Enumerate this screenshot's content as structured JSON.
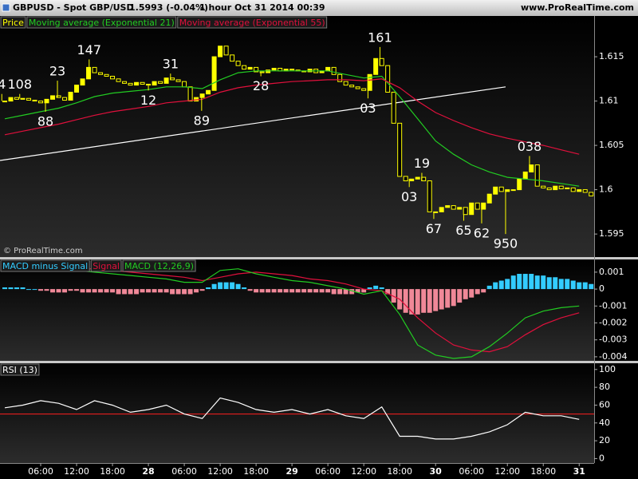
{
  "header": {
    "symbol": "GBPUSD - Spot GBP/USD",
    "quote": "1.5993 (-0.04%)",
    "interval": "1 hour",
    "datetime": "Oct 31 2014 00:39",
    "site": "www.ProRealTime.com"
  },
  "xlim": [
    -0.8,
    98.5
  ],
  "xticks": [
    {
      "value": 6,
      "label": "06:00"
    },
    {
      "value": 12,
      "label": "12:00"
    },
    {
      "value": 18,
      "label": "18:00"
    },
    {
      "value": 24,
      "label": "28"
    },
    {
      "value": 30,
      "label": "06:00"
    },
    {
      "value": 36,
      "label": "12:00"
    },
    {
      "value": 42,
      "label": "18:00"
    },
    {
      "value": 48,
      "label": "29"
    },
    {
      "value": 54,
      "label": "06:00"
    },
    {
      "value": 60,
      "label": "12:00"
    },
    {
      "value": 66,
      "label": "18:00"
    },
    {
      "value": 72,
      "label": "30"
    },
    {
      "value": 78,
      "label": "06:00"
    },
    {
      "value": 84,
      "label": "12:00"
    },
    {
      "value": 90,
      "label": "18:00"
    },
    {
      "value": 96,
      "label": "31"
    }
  ],
  "x_hours": [
    0,
    1,
    2,
    3,
    4,
    5,
    6,
    7,
    8,
    9,
    10,
    11,
    12,
    13,
    14,
    15,
    16,
    17,
    18,
    19,
    20,
    21,
    22,
    23,
    24,
    25,
    26,
    27,
    28,
    29,
    30,
    31,
    32,
    33,
    34,
    35,
    36,
    37,
    38,
    39,
    40,
    41,
    42,
    43,
    44,
    45,
    46,
    47,
    48,
    49,
    50,
    51,
    52,
    53,
    54,
    55,
    56,
    57,
    58,
    59,
    60,
    61,
    62,
    63,
    64,
    65,
    66,
    67,
    68,
    69,
    70,
    71,
    72,
    73,
    74,
    75,
    76,
    77,
    78,
    79,
    80,
    81,
    82,
    83,
    84,
    85,
    86,
    87,
    88,
    89,
    90,
    91,
    92,
    93,
    94,
    95,
    96,
    97,
    98
  ],
  "x_3h": [
    0,
    3,
    6,
    9,
    12,
    15,
    18,
    21,
    24,
    27,
    30,
    33,
    36,
    39,
    42,
    45,
    48,
    51,
    54,
    57,
    60,
    63,
    66,
    69,
    72,
    75,
    78,
    81,
    84,
    87,
    90,
    93,
    96
  ],
  "chart_data": [
    {
      "type": "candlestick",
      "watermark": "© ProRealTime.com",
      "ylim": [
        1.5924,
        1.6196
      ],
      "yticks": [
        1.595,
        1.6,
        1.605,
        1.61,
        1.615
      ],
      "series": [
        {
          "name": "Price",
          "type": "candlestick",
          "color": "#ffff00",
          "values": [
            1.61,
            1.6104,
            1.6102,
            1.6103,
            1.6101,
            1.61,
            1.6098,
            1.6102,
            1.6106,
            1.6104,
            1.6101,
            1.611,
            1.6118,
            1.6125,
            1.6138,
            1.6132,
            1.613,
            1.6128,
            1.6125,
            1.6122,
            1.612,
            1.6118,
            1.6121,
            1.6119,
            1.6118,
            1.6122,
            1.612,
            1.6126,
            1.6124,
            1.6122,
            1.6116,
            1.61,
            1.6104,
            1.6108,
            1.6112,
            1.615,
            1.6162,
            1.6152,
            1.6145,
            1.614,
            1.6136,
            1.6138,
            1.6133,
            1.6132,
            1.6135,
            1.6137,
            1.6134,
            1.6136,
            1.6135,
            1.6134,
            1.6133,
            1.6136,
            1.6132,
            1.6134,
            1.6138,
            1.613,
            1.6122,
            1.6118,
            1.6116,
            1.6114,
            1.6112,
            1.613,
            1.6148,
            1.614,
            1.611,
            1.6075,
            1.6015,
            1.601,
            1.6012,
            1.6014,
            1.601,
            1.5975,
            1.5975,
            1.598,
            1.5982,
            1.5978,
            1.598,
            1.5972,
            1.5985,
            1.5978,
            1.5985,
            1.5995,
            1.6003,
            1.5998,
            1.6,
            1.6,
            1.6012,
            1.602,
            1.6028,
            1.6004,
            1.6002,
            1.6,
            1.6004,
            1.6001,
            1.6002,
            1.5998,
            1.6,
            1.5997,
            1.5993
          ]
        },
        {
          "name": "Moving average (Exponential 21)",
          "type": "line",
          "color": "#22cc22",
          "values": [
            1.608,
            1.6084,
            1.6088,
            1.6092,
            1.6098,
            1.6105,
            1.6109,
            1.6111,
            1.6113,
            1.6116,
            1.6116,
            1.6114,
            1.6124,
            1.6132,
            1.6134,
            1.6134,
            1.6134,
            1.6134,
            1.6134,
            1.613,
            1.6126,
            1.6128,
            1.6105,
            1.608,
            1.6055,
            1.604,
            1.6028,
            1.602,
            1.6014,
            1.6012,
            1.601,
            1.6007,
            1.6004
          ]
        },
        {
          "name": "Moving average (Exponential 55)",
          "type": "line",
          "color": "#e0103c",
          "values": [
            1.6062,
            1.6066,
            1.607,
            1.6074,
            1.6079,
            1.6084,
            1.6088,
            1.6091,
            1.6094,
            1.6098,
            1.61,
            1.6102,
            1.611,
            1.6115,
            1.6118,
            1.612,
            1.6122,
            1.6123,
            1.6124,
            1.6124,
            1.6123,
            1.6125,
            1.6115,
            1.61,
            1.6087,
            1.6078,
            1.607,
            1.6063,
            1.6058,
            1.6054,
            1.605,
            1.6045,
            1.604
          ]
        }
      ],
      "trendline": {
        "x": [
          -0.8,
          83.7
        ],
        "y": [
          1.6033,
          1.6116
        ],
        "color": "#ffffff"
      },
      "annotations": [
        {
          "label": "4",
          "x": -0.5,
          "y": 1.6108
        },
        {
          "label": "108",
          "x": 2.5,
          "y": 1.6108
        },
        {
          "label": "23",
          "x": 8.8,
          "y": 1.6123
        },
        {
          "label": "88",
          "x": 6.8,
          "y": 1.6088
        },
        {
          "label": "147",
          "x": 14.1,
          "y": 1.6147
        },
        {
          "label": "12",
          "x": 24,
          "y": 1.6112
        },
        {
          "label": "31",
          "x": 27.7,
          "y": 1.6131
        },
        {
          "label": "89",
          "x": 32.9,
          "y": 1.6089
        },
        {
          "label": "28",
          "x": 42.8,
          "y": 1.6128
        },
        {
          "label": "161",
          "x": 62.7,
          "y": 1.6161
        },
        {
          "label": "03",
          "x": 60.7,
          "y": 1.6103
        },
        {
          "label": "03",
          "x": 67.6,
          "y": 1.6003
        },
        {
          "label": "19",
          "x": 69.7,
          "y": 1.6019
        },
        {
          "label": "67",
          "x": 71.7,
          "y": 1.5967
        },
        {
          "label": "65",
          "x": 76.7,
          "y": 1.5965
        },
        {
          "label": "62",
          "x": 79.7,
          "y": 1.5962
        },
        {
          "label": "950",
          "x": 83.7,
          "y": 1.595
        },
        {
          "label": "038",
          "x": 87.7,
          "y": 1.6038
        }
      ]
    },
    {
      "type": "macd",
      "ylim": [
        -0.00424,
        0.00175
      ],
      "yticks": [
        -0.004,
        -0.003,
        -0.002,
        -0.001,
        0,
        0.001
      ],
      "series": [
        {
          "name": "MACD minus Signal",
          "type": "histogram",
          "color": "#33ccff",
          "negative_color": "#f08898",
          "values": [
            0.0001,
            0.0001,
            0.0001,
            0.0001,
            0.0,
            0.0,
            -0.0001,
            -0.0001,
            -0.0002,
            -0.0002,
            -0.0002,
            -0.0001,
            -0.0001,
            -0.0002,
            -0.0002,
            -0.0002,
            -0.0002,
            -0.0002,
            -0.0002,
            -0.0003,
            -0.0003,
            -0.0003,
            -0.0003,
            -0.0002,
            -0.0002,
            -0.0002,
            -0.0002,
            -0.0002,
            -0.0003,
            -0.0003,
            -0.0003,
            -0.0003,
            -0.0002,
            -0.0001,
            0.0001,
            0.0003,
            0.0004,
            0.0004,
            0.0004,
            0.0003,
            0.0001,
            -0.0001,
            -0.0002,
            -0.0002,
            -0.0002,
            -0.0002,
            -0.0002,
            -0.0002,
            -0.0002,
            -0.0002,
            -0.0002,
            -0.0002,
            -0.0002,
            -0.0002,
            -0.0002,
            -0.0003,
            -0.0003,
            -0.0003,
            -0.0003,
            -0.0002,
            -0.0002,
            0.0001,
            0.0002,
            0.0001,
            -0.0003,
            -0.0008,
            -0.0012,
            -0.0014,
            -0.0015,
            -0.0015,
            -0.0014,
            -0.0014,
            -0.0013,
            -0.0012,
            -0.0011,
            -0.001,
            -0.0008,
            -0.0006,
            -0.0005,
            -0.0003,
            -0.0002,
            0.0002,
            0.0004,
            0.0005,
            0.0006,
            0.0008,
            0.0009,
            0.0009,
            0.0009,
            0.0008,
            0.0008,
            0.0007,
            0.0007,
            0.0006,
            0.0006,
            0.0005,
            0.0004,
            0.0004,
            0.0003
          ]
        },
        {
          "name": "Signal",
          "type": "line",
          "color": "#e0103c",
          "values": [
            0.0012,
            0.0012,
            0.0013,
            0.0013,
            0.0012,
            0.0012,
            0.0011,
            0.001,
            0.0009,
            0.0008,
            0.0007,
            0.0005,
            0.0007,
            0.0009,
            0.001,
            0.0009,
            0.0008,
            0.0006,
            0.0005,
            0.0003,
            0.0,
            -0.0001,
            -0.0006,
            -0.0017,
            -0.0026,
            -0.0033,
            -0.0036,
            -0.0037,
            -0.0034,
            -0.0027,
            -0.0021,
            -0.0017,
            -0.0014
          ]
        },
        {
          "name": "MACD (12,26,9)",
          "type": "line",
          "color": "#22cc22",
          "values": [
            0.0013,
            0.0013,
            0.0012,
            0.0011,
            0.0011,
            0.001,
            0.0009,
            0.0008,
            0.0007,
            0.0006,
            0.0004,
            0.0004,
            0.0011,
            0.0012,
            0.0009,
            0.0007,
            0.0005,
            0.0004,
            0.0002,
            0.0,
            -0.0003,
            -0.0001,
            -0.0015,
            -0.0033,
            -0.0039,
            -0.0041,
            -0.004,
            -0.0034,
            -0.0026,
            -0.0017,
            -0.0013,
            -0.0011,
            -0.001
          ]
        }
      ]
    },
    {
      "type": "line",
      "ylim": [
        -5,
        107
      ],
      "yticks": [
        0,
        20,
        40,
        60,
        80,
        100
      ],
      "level": {
        "value": 50,
        "color": "#ff2020"
      },
      "series": [
        {
          "name": "RSI (13)",
          "type": "line",
          "color": "#ffffff",
          "values": [
            57,
            60,
            65,
            62,
            55,
            65,
            60,
            52,
            55,
            60,
            50,
            45,
            68,
            63,
            55,
            52,
            55,
            50,
            55,
            48,
            45,
            58,
            25,
            25,
            22,
            22,
            25,
            30,
            38,
            52,
            48,
            48,
            44
          ]
        }
      ]
    }
  ]
}
